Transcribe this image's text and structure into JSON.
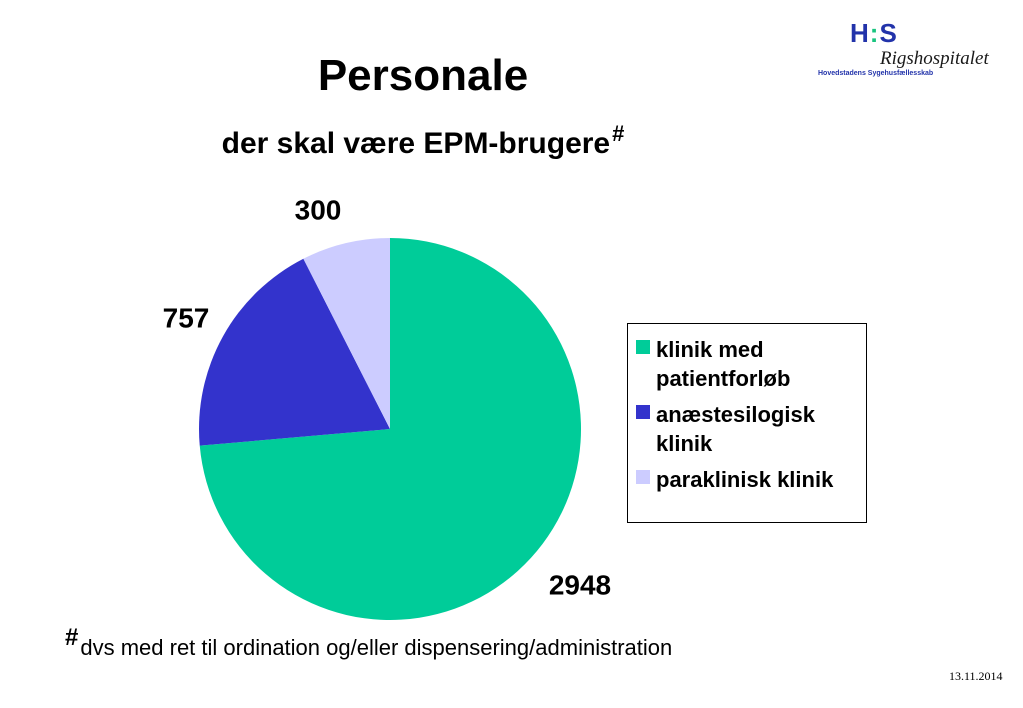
{
  "logo": {
    "mark_left": "H",
    "mark_dots": ":",
    "mark_right": "S",
    "name": "Rigshospitalet",
    "sub": "Hovedstadens Sygehusfællesskab"
  },
  "footnote": {
    "marker": "#",
    "text": "dvs med ret til ordination og/eller dispensering/administration"
  },
  "date": "13.11.2014",
  "colors": {
    "klinik": "#00cc99",
    "anaestesi": "#3333cc",
    "paraklinisk": "#ccccff"
  },
  "chart_data": {
    "type": "pie",
    "title": "Personale",
    "subtitle": "der skal være EPM-brugere",
    "subtitle_marker": "#",
    "legend_position": "right",
    "series": [
      {
        "name": "klinik med patientforløb",
        "value": 2948,
        "color": "#00cc99"
      },
      {
        "name": "anæstesilogisk klinik",
        "value": 757,
        "color": "#3333cc"
      },
      {
        "name": "paraklinisk klinik",
        "value": 300,
        "color": "#ccccff"
      }
    ]
  }
}
